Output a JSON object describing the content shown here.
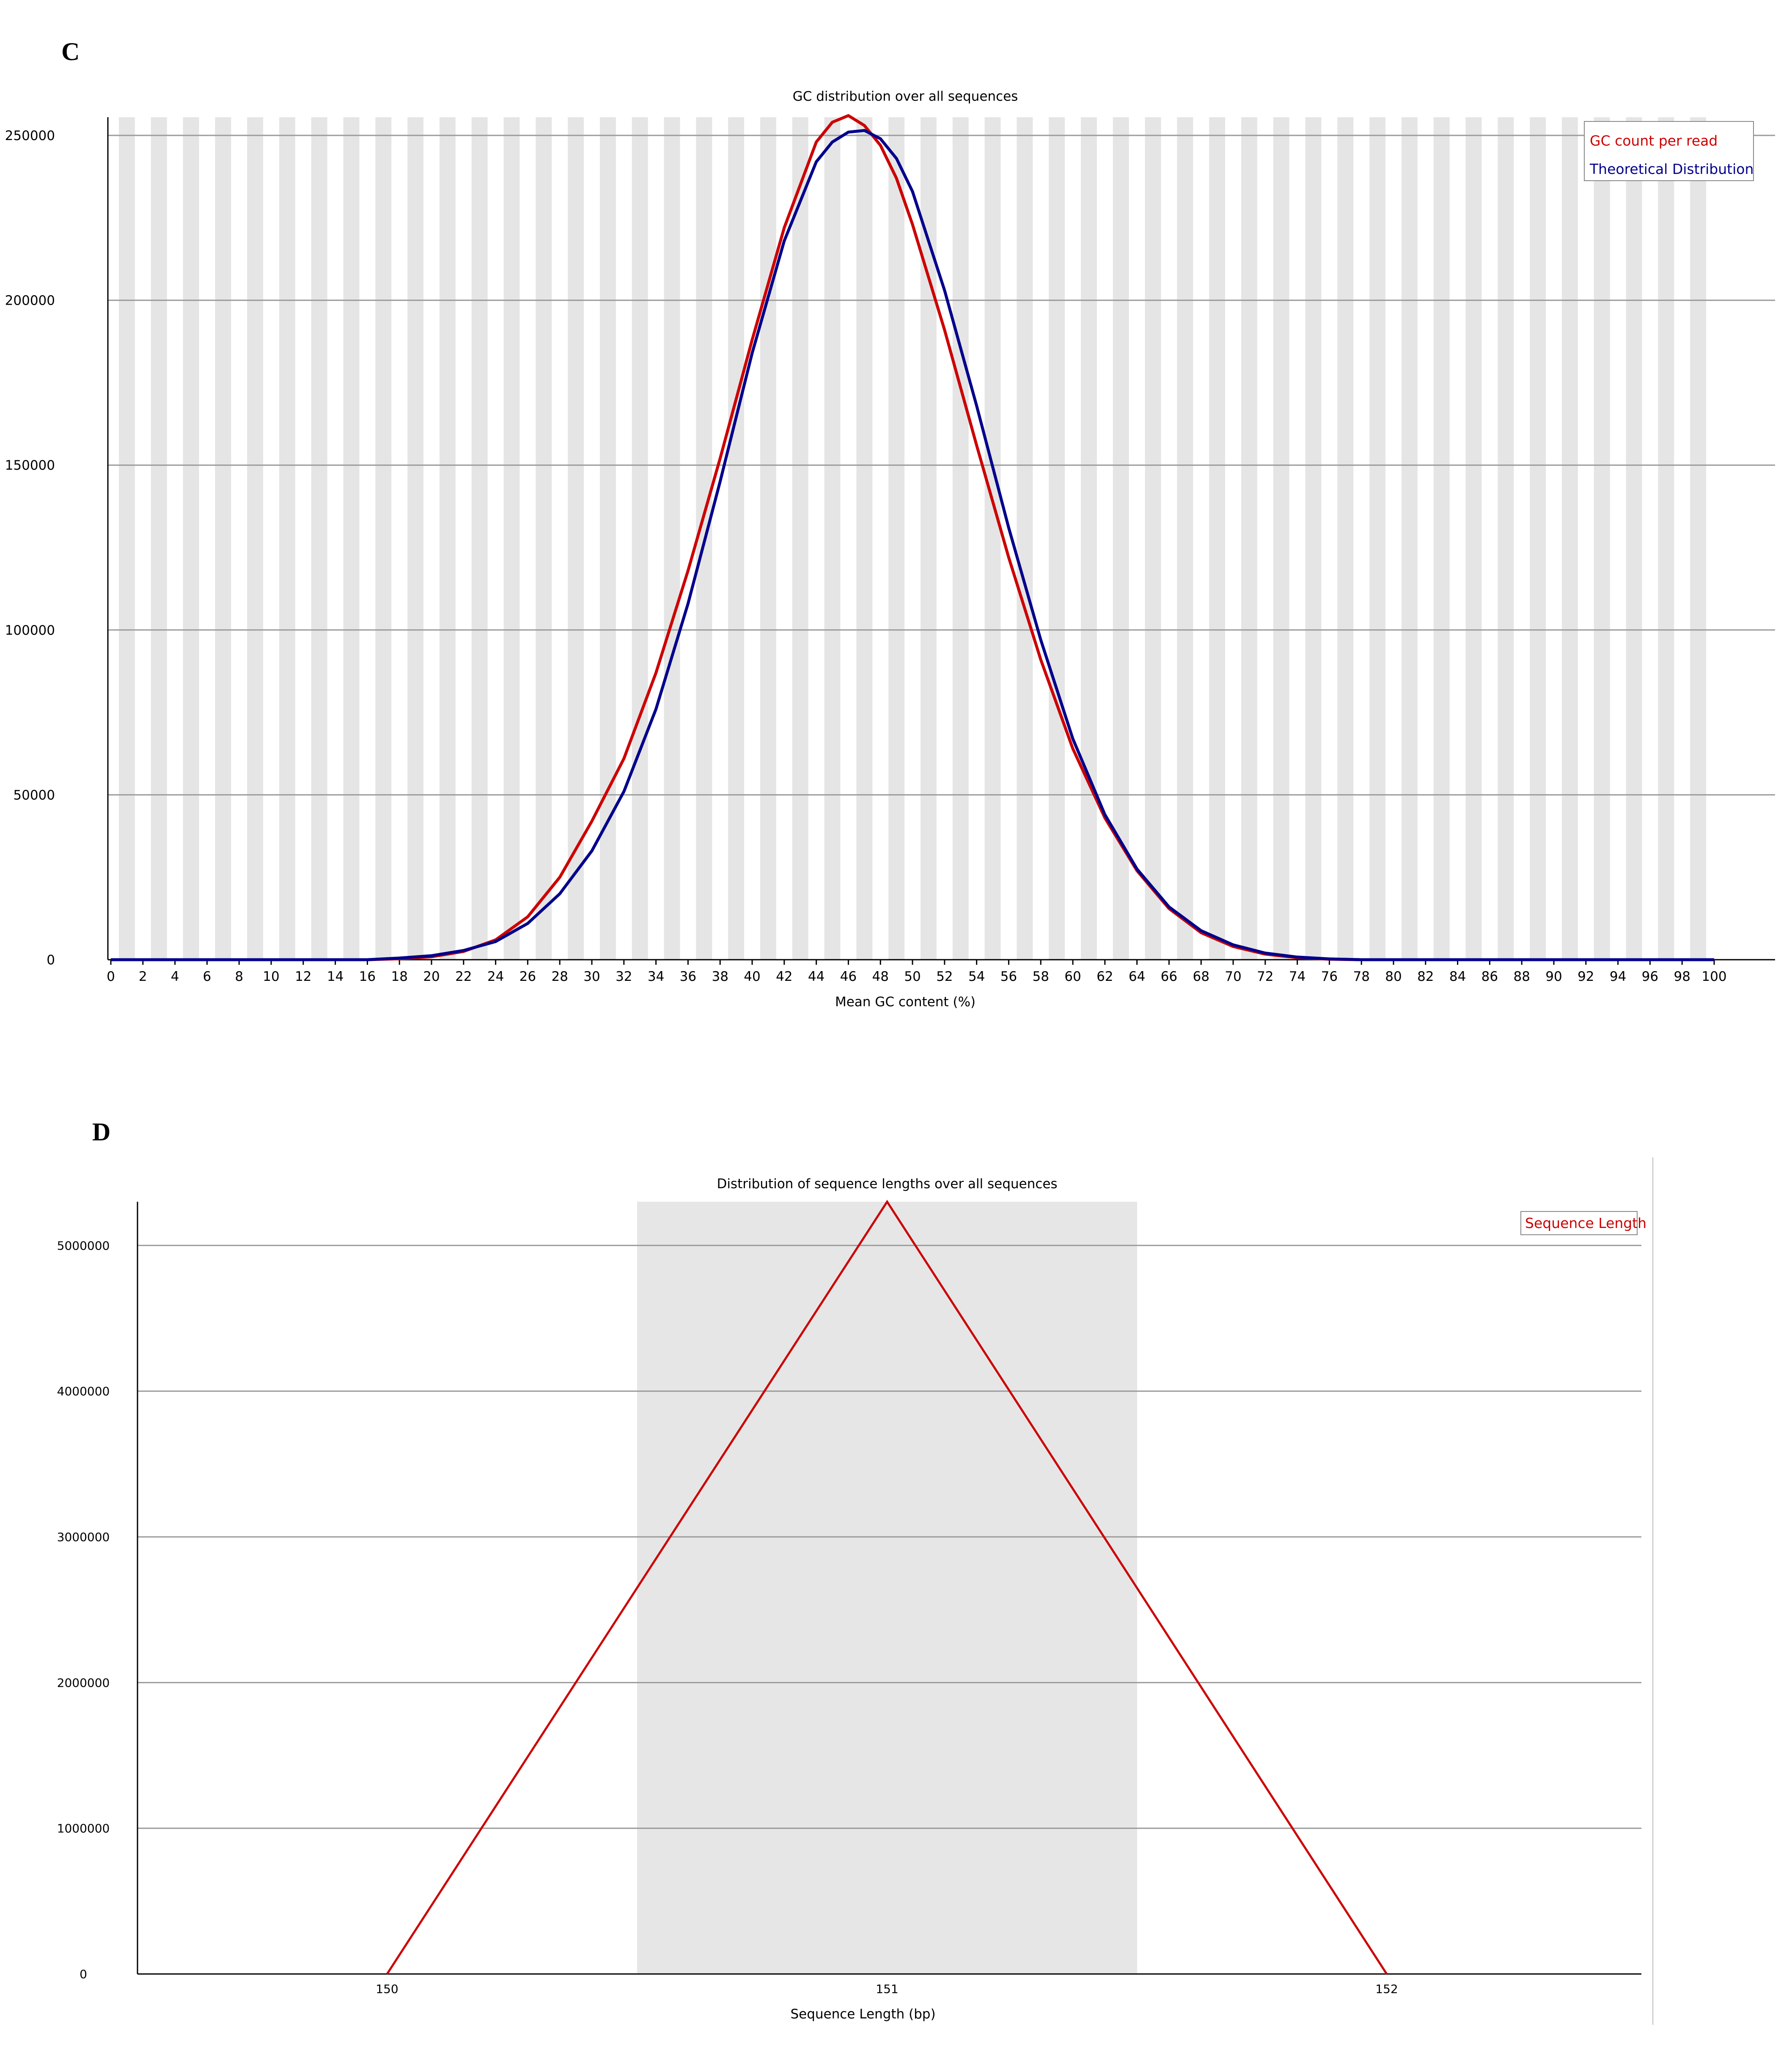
{
  "panels": {
    "c_label": "C",
    "d_label": "D"
  },
  "chart_data": [
    {
      "panel": "C",
      "type": "line",
      "title": "GC distribution over all sequences",
      "xlabel": "Mean GC content (%)",
      "ylabel": "",
      "xlim": [
        0,
        100
      ],
      "ylim": [
        0,
        250000
      ],
      "xticks": [
        0,
        2,
        4,
        6,
        8,
        10,
        12,
        14,
        16,
        18,
        20,
        22,
        24,
        26,
        28,
        30,
        32,
        34,
        36,
        38,
        40,
        42,
        44,
        46,
        48,
        50,
        52,
        54,
        56,
        58,
        60,
        62,
        64,
        66,
        68,
        70,
        72,
        74,
        76,
        78,
        80,
        82,
        84,
        86,
        88,
        90,
        92,
        94,
        96,
        98,
        100
      ],
      "yticks": [
        0,
        50000,
        100000,
        150000,
        200000,
        250000
      ],
      "grid": true,
      "legend_position": "top-right",
      "series": [
        {
          "name": "GC count per read",
          "color": "#cc0000",
          "x": [
            0,
            10,
            16,
            18,
            20,
            22,
            24,
            26,
            28,
            30,
            32,
            34,
            36,
            38,
            40,
            42,
            44,
            45,
            46,
            47,
            48,
            49,
            50,
            52,
            54,
            56,
            58,
            60,
            62,
            64,
            66,
            68,
            70,
            72,
            74,
            76,
            78,
            90,
            100
          ],
          "y": [
            0,
            0,
            0,
            300,
            900,
            2500,
            6000,
            13000,
            25000,
            42000,
            61000,
            87000,
            118000,
            152000,
            188000,
            222000,
            248000,
            254000,
            256000,
            253000,
            247000,
            237000,
            223000,
            191000,
            156000,
            122000,
            91000,
            64000,
            43000,
            27000,
            15500,
            8200,
            4000,
            1700,
            600,
            150,
            0,
            0,
            0
          ]
        },
        {
          "name": "Theoretical Distribution",
          "color": "#00008b",
          "x": [
            0,
            10,
            16,
            18,
            20,
            22,
            24,
            26,
            28,
            30,
            32,
            34,
            36,
            38,
            40,
            42,
            44,
            45,
            46,
            47,
            48,
            49,
            50,
            52,
            54,
            56,
            58,
            60,
            62,
            64,
            66,
            68,
            70,
            72,
            74,
            76,
            78,
            90,
            100
          ],
          "y": [
            0,
            0,
            0,
            500,
            1200,
            2800,
            5500,
            11000,
            20000,
            33000,
            51000,
            76000,
            108000,
            145000,
            184000,
            218000,
            242000,
            248000,
            251000,
            251500,
            249000,
            243000,
            233000,
            203000,
            168000,
            131000,
            97000,
            67000,
            44000,
            27500,
            16000,
            8800,
            4500,
            2000,
            800,
            250,
            0,
            0,
            0
          ]
        }
      ]
    },
    {
      "panel": "D",
      "type": "line",
      "title": "Distribution of sequence lengths over all sequences",
      "xlabel": "Sequence Length (bp)",
      "ylabel": "",
      "categories": [
        "150",
        "151",
        "152"
      ],
      "ylim": [
        0,
        5300000
      ],
      "yticks": [
        0,
        1000000,
        2000000,
        3000000,
        4000000,
        5000000
      ],
      "grid": true,
      "legend_position": "top-right",
      "series": [
        {
          "name": "Sequence Length",
          "color": "#cc0000",
          "values": [
            0,
            5300000,
            0
          ]
        }
      ]
    }
  ]
}
